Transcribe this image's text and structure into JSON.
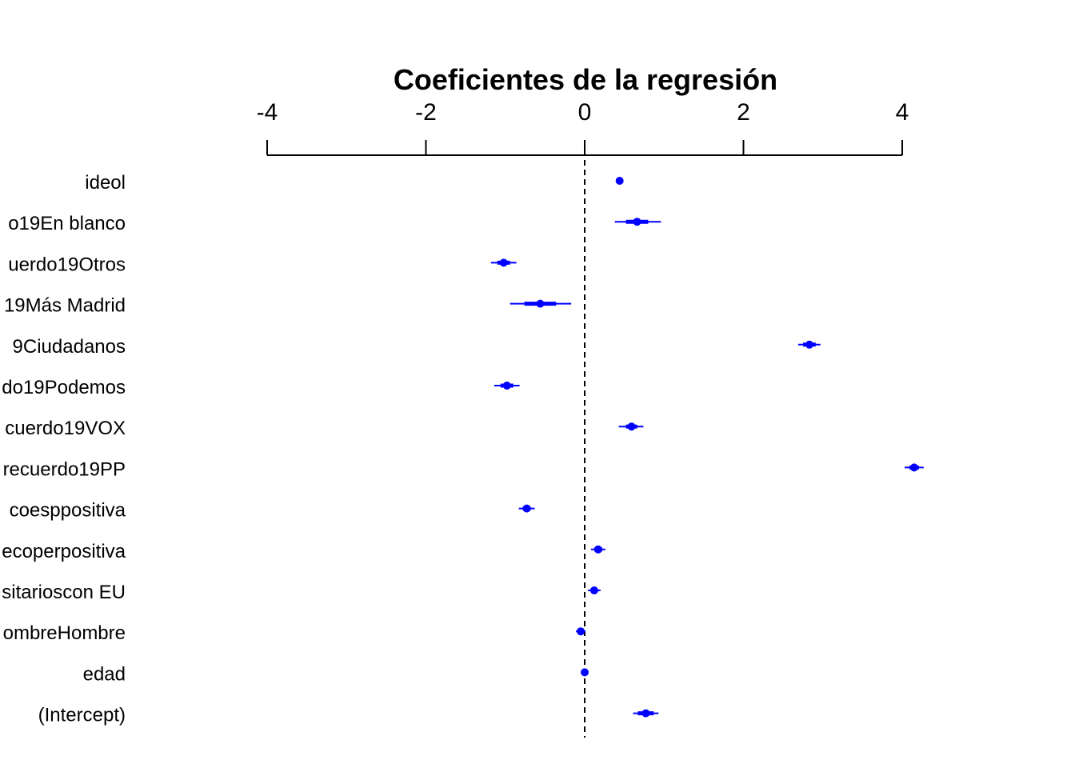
{
  "chart_data": {
    "type": "scatter",
    "plot_style": "coefficient-plot",
    "title": "Coeficientes de la regresión",
    "xlabel": "",
    "ylabel": "",
    "xlim": [
      -4,
      4
    ],
    "x_ticks": [
      -4,
      -2,
      0,
      2,
      4
    ],
    "x_tick_labels": [
      "-4",
      "-2",
      "0",
      "2",
      "4"
    ],
    "axis_position": "top",
    "reference_line": 0,
    "grid": false,
    "point_color": "#0000ff",
    "categories": [
      "ideol",
      "o19En blanco",
      "uerdo19Otros",
      "19Más Madrid",
      "9Ciudadanos",
      "do19Podemos",
      "cuerdo19VOX",
      "recuerdo19PP",
      "coesppositiva",
      "ecoperpositiva",
      "sitarioscon EU",
      "ombreHombre",
      "edad",
      "(Intercept)"
    ],
    "series": [
      {
        "values": [
          0.44,
          0.66,
          -1.02,
          -0.56,
          2.83,
          -0.98,
          0.59,
          4.15,
          -0.73,
          0.17,
          0.12,
          -0.05,
          0.0,
          0.77
        ],
        "inner_interval": [
          [
            0.42,
            0.46
          ],
          [
            0.52,
            0.8
          ],
          [
            -1.1,
            -0.94
          ],
          [
            -0.76,
            -0.36
          ],
          [
            2.75,
            2.91
          ],
          [
            -1.06,
            -0.9
          ],
          [
            0.52,
            0.66
          ],
          [
            4.09,
            4.21
          ],
          [
            -0.78,
            -0.68
          ],
          [
            0.12,
            0.22
          ],
          [
            0.08,
            0.16
          ],
          [
            -0.08,
            -0.02
          ],
          [
            -0.01,
            0.01
          ],
          [
            0.67,
            0.87
          ]
        ],
        "outer_interval": [
          [
            0.4,
            0.48
          ],
          [
            0.38,
            0.96
          ],
          [
            -1.18,
            -0.86
          ],
          [
            -0.94,
            -0.17
          ],
          [
            2.69,
            2.97
          ],
          [
            -1.14,
            -0.82
          ],
          [
            0.43,
            0.74
          ],
          [
            4.03,
            4.27
          ],
          [
            -0.83,
            -0.63
          ],
          [
            0.08,
            0.26
          ],
          [
            0.04,
            0.2
          ],
          [
            -0.11,
            0.01
          ],
          [
            -0.02,
            0.02
          ],
          [
            0.61,
            0.93
          ]
        ]
      }
    ]
  }
}
